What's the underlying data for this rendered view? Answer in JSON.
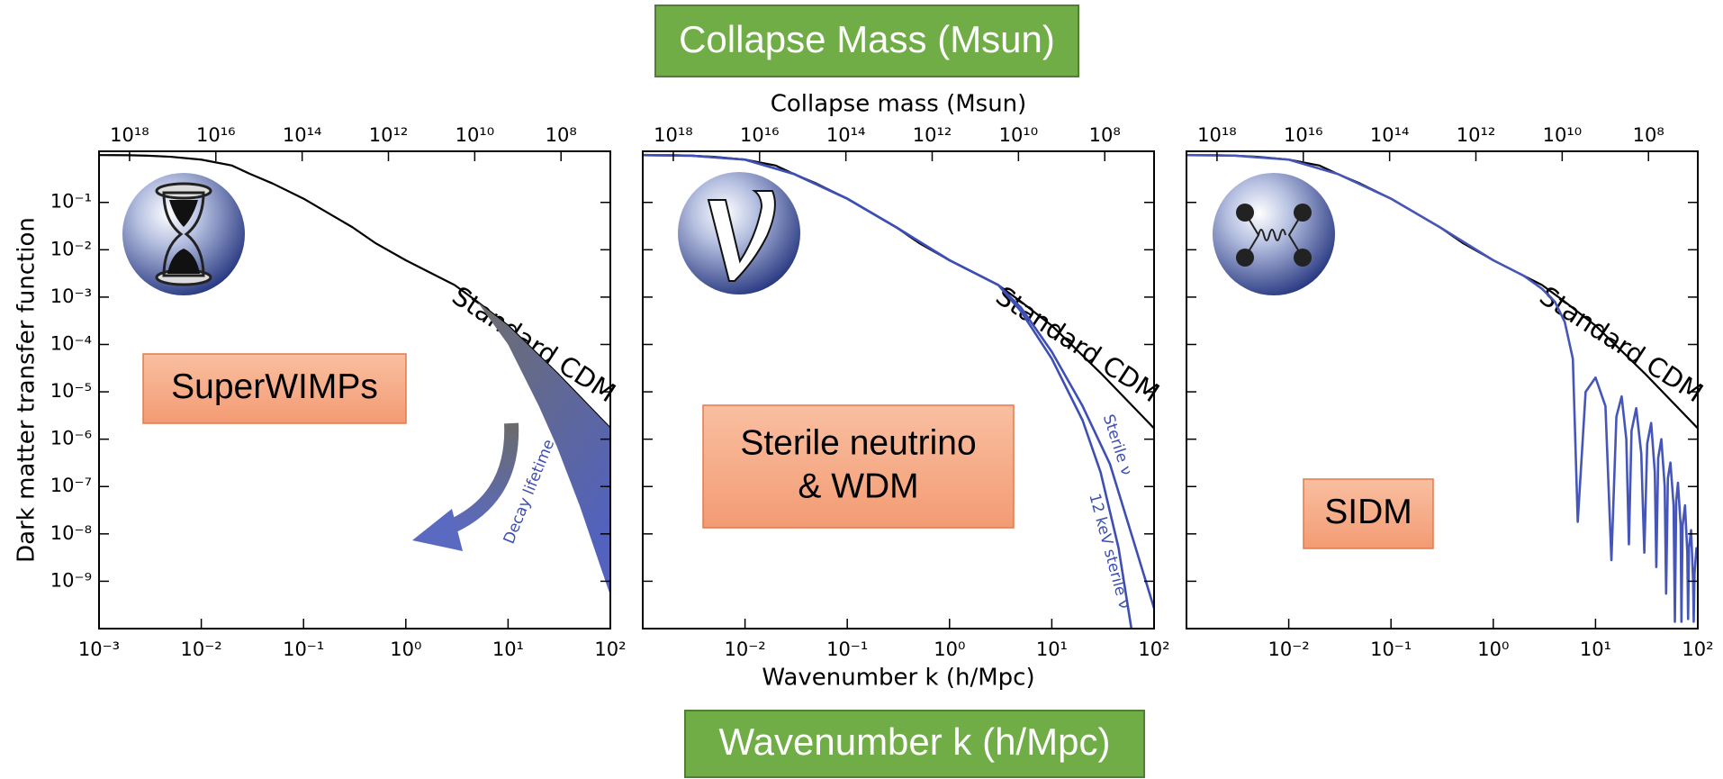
{
  "banners": {
    "top": "Collapse Mass (Msun)",
    "bottom": "Wavenumber k (h/Mpc)"
  },
  "chart_data": [
    {
      "type": "line",
      "log_x": true,
      "log_y": true,
      "ylabel": "Dark matter transfer function",
      "xlim": [
        0.001,
        100
      ],
      "ylim": [
        1e-10,
        1.2
      ],
      "xticks": [
        {
          "value": 0.001,
          "label": "10⁻³"
        },
        {
          "value": 0.01,
          "label": "10⁻²"
        },
        {
          "value": 0.1,
          "label": "10⁻¹"
        },
        {
          "value": 1,
          "label": "10⁰"
        },
        {
          "value": 10,
          "label": "10¹"
        },
        {
          "value": 100,
          "label": "10²"
        }
      ],
      "yticks": [
        {
          "value": 0.1,
          "label": "10⁻¹"
        },
        {
          "value": 0.01,
          "label": "10⁻²"
        },
        {
          "value": 0.001,
          "label": "10⁻³"
        },
        {
          "value": 0.0001,
          "label": "10⁻⁴"
        },
        {
          "value": 1e-05,
          "label": "10⁻⁵"
        },
        {
          "value": 1e-06,
          "label": "10⁻⁶"
        },
        {
          "value": 1e-07,
          "label": "10⁻⁷"
        },
        {
          "value": 1e-08,
          "label": "10⁻⁸"
        },
        {
          "value": 1e-09,
          "label": "10⁻⁹"
        }
      ],
      "show_ytick_labels": true,
      "x2lim": [
        5.1e+18,
        7200000.0
      ],
      "x2ticks": [
        {
          "value": 1e+18,
          "label": "10¹⁸"
        },
        {
          "value": 1e+16,
          "label": "10¹⁶"
        },
        {
          "value": 100000000000000.0,
          "label": "10¹⁴"
        },
        {
          "value": 1000000000000.0,
          "label": "10¹²"
        },
        {
          "value": 10000000000.0,
          "label": "10¹⁰"
        },
        {
          "value": 100000000.0,
          "label": "10⁸"
        }
      ],
      "series": [
        {
          "name": "Standard CDM",
          "color": "#000000",
          "x": [
            0.001,
            0.002,
            0.003,
            0.005,
            0.01,
            0.02,
            0.03,
            0.05,
            0.1,
            0.2,
            0.3,
            0.5,
            1,
            2,
            3,
            5,
            10,
            30,
            100
          ],
          "values": [
            1,
            0.99,
            0.97,
            0.92,
            0.8,
            0.6,
            0.4,
            0.25,
            0.12,
            0.05,
            0.03,
            0.014,
            0.006,
            0.0028,
            0.0018,
            0.0008,
            0.00025,
            2.5e-05,
            1.7e-06
          ]
        },
        {
          "style": "band",
          "color": "#5262bd",
          "x": [
            5,
            10,
            20,
            30,
            50,
            100
          ],
          "values": [
            0.0008,
            0.0001,
            5e-06,
            7e-07,
            4e-08,
            5e-10
          ]
        }
      ],
      "annotations": {
        "box": [
          "SuperWIMPs"
        ],
        "arrow_label": "Decay lifetime"
      }
    },
    {
      "type": "line",
      "log_x": true,
      "log_y": true,
      "xlabel": "Wavenumber k (h/Mpc)",
      "x2label": "Collapse mass (Msun)",
      "xlim": [
        0.001,
        100
      ],
      "ylim": [
        1e-10,
        1.2
      ],
      "xticks": [
        {
          "value": 0.01,
          "label": "10⁻²"
        },
        {
          "value": 0.1,
          "label": "10⁻¹"
        },
        {
          "value": 1,
          "label": "10⁰"
        },
        {
          "value": 10,
          "label": "10¹"
        },
        {
          "value": 100,
          "label": "10²"
        }
      ],
      "yticks": [
        {
          "value": 0.1,
          "label": "10⁻¹"
        },
        {
          "value": 0.01,
          "label": "10⁻²"
        },
        {
          "value": 0.001,
          "label": "10⁻³"
        },
        {
          "value": 0.0001,
          "label": "10⁻⁴"
        },
        {
          "value": 1e-05,
          "label": "10⁻⁵"
        },
        {
          "value": 1e-06,
          "label": "10⁻⁶"
        },
        {
          "value": 1e-07,
          "label": "10⁻⁷"
        },
        {
          "value": 1e-08,
          "label": "10⁻⁸"
        },
        {
          "value": 1e-09,
          "label": "10⁻⁹"
        }
      ],
      "show_ytick_labels": false,
      "x2lim": [
        5.1e+18,
        7200000.0
      ],
      "x2ticks": [
        {
          "value": 1e+18,
          "label": "10¹⁸"
        },
        {
          "value": 1e+16,
          "label": "10¹⁶"
        },
        {
          "value": 100000000000000.0,
          "label": "10¹⁴"
        },
        {
          "value": 1000000000000.0,
          "label": "10¹²"
        },
        {
          "value": 10000000000.0,
          "label": "10¹⁰"
        },
        {
          "value": 100000000.0,
          "label": "10⁸"
        }
      ],
      "series": [
        {
          "name": "Standard CDM",
          "color": "#000000",
          "x": [
            0.001,
            0.002,
            0.003,
            0.005,
            0.01,
            0.02,
            0.03,
            0.05,
            0.1,
            0.2,
            0.3,
            0.5,
            1,
            2,
            3,
            5,
            10,
            30,
            100
          ],
          "values": [
            1,
            0.99,
            0.97,
            0.92,
            0.8,
            0.6,
            0.4,
            0.25,
            0.12,
            0.05,
            0.03,
            0.014,
            0.006,
            0.0028,
            0.0018,
            0.0008,
            0.00025,
            2.5e-05,
            1.7e-06
          ]
        },
        {
          "name": "Sterile ν",
          "color": "#3e4fb3",
          "x": [
            0.001,
            0.003,
            0.01,
            0.03,
            0.1,
            0.3,
            1,
            3,
            5,
            10,
            20,
            37,
            60,
            100
          ],
          "values": [
            1,
            0.97,
            0.8,
            0.4,
            0.12,
            0.03,
            0.006,
            0.0018,
            0.0006,
            7e-05,
            5e-06,
            3e-07,
            1e-08,
            2.7e-10
          ]
        },
        {
          "name": "12 keV sterile ν",
          "color": "#3e4fb3",
          "x": [
            0.001,
            0.003,
            0.01,
            0.03,
            0.1,
            0.3,
            1,
            3,
            5,
            10,
            20,
            30,
            45,
            60
          ],
          "values": [
            1,
            0.97,
            0.8,
            0.4,
            0.12,
            0.03,
            0.006,
            0.0018,
            0.0005,
            5e-05,
            2.5e-06,
            2e-07,
            5e-09,
            1e-10
          ]
        }
      ],
      "annotations": {
        "box": [
          "Sterile neutrino",
          "& WDM"
        ]
      }
    },
    {
      "type": "line",
      "log_x": true,
      "log_y": true,
      "xlim": [
        0.001,
        100
      ],
      "ylim": [
        1e-10,
        1.2
      ],
      "xticks": [
        {
          "value": 0.01,
          "label": "10⁻²"
        },
        {
          "value": 0.1,
          "label": "10⁻¹"
        },
        {
          "value": 1,
          "label": "10⁰"
        },
        {
          "value": 10,
          "label": "10¹"
        },
        {
          "value": 100,
          "label": "10²"
        }
      ],
      "yticks": [
        {
          "value": 0.1,
          "label": "10⁻¹"
        },
        {
          "value": 0.01,
          "label": "10⁻²"
        },
        {
          "value": 0.001,
          "label": "10⁻³"
        },
        {
          "value": 0.0001,
          "label": "10⁻⁴"
        },
        {
          "value": 1e-05,
          "label": "10⁻⁵"
        },
        {
          "value": 1e-06,
          "label": "10⁻⁶"
        },
        {
          "value": 1e-07,
          "label": "10⁻⁷"
        },
        {
          "value": 1e-08,
          "label": "10⁻⁸"
        },
        {
          "value": 1e-09,
          "label": "10⁻⁹"
        }
      ],
      "show_ytick_labels": false,
      "x2lim": [
        5.1e+18,
        7200000.0
      ],
      "x2ticks": [
        {
          "value": 1e+18,
          "label": "10¹⁸"
        },
        {
          "value": 1e+16,
          "label": "10¹⁶"
        },
        {
          "value": 100000000000000.0,
          "label": "10¹⁴"
        },
        {
          "value": 1000000000000.0,
          "label": "10¹²"
        },
        {
          "value": 10000000000.0,
          "label": "10¹⁰"
        },
        {
          "value": 100000000.0,
          "label": "10⁸"
        }
      ],
      "series": [
        {
          "name": "Standard CDM",
          "color": "#000000",
          "x": [
            0.001,
            0.002,
            0.003,
            0.005,
            0.01,
            0.02,
            0.03,
            0.05,
            0.1,
            0.2,
            0.3,
            0.5,
            1,
            2,
            3,
            5,
            10,
            30,
            100
          ],
          "values": [
            1,
            0.99,
            0.97,
            0.92,
            0.8,
            0.6,
            0.4,
            0.25,
            0.12,
            0.05,
            0.03,
            0.014,
            0.006,
            0.0028,
            0.0018,
            0.0008,
            0.00025,
            2.5e-05,
            1.7e-06
          ]
        },
        {
          "color": "#4656b8",
          "x": [
            0.001,
            0.003,
            0.01,
            0.03,
            0.1,
            0.3,
            1,
            2,
            3,
            4,
            5,
            6,
            6.7,
            8,
            10,
            12.5,
            14.3,
            16,
            18,
            20,
            21.2,
            22.5,
            25,
            28,
            30,
            32,
            35,
            38,
            39.3,
            41,
            44,
            47.5,
            49,
            51,
            54,
            58,
            59.7,
            61.5,
            64,
            68,
            69.2,
            71,
            75,
            79,
            80.4,
            82,
            86,
            90,
            91.2,
            93,
            97,
            100
          ],
          "values": [
            1,
            0.97,
            0.8,
            0.4,
            0.12,
            0.03,
            0.006,
            0.0028,
            0.0015,
            0.0008,
            0.0003,
            5e-05,
            1.8e-08,
            1e-05,
            2e-05,
            5e-06,
            2.8e-09,
            3e-06,
            8e-06,
            1e-06,
            6e-09,
            1.5e-06,
            4.5e-06,
            5e-07,
            4e-09,
            8e-07,
            2.2e-06,
            2e-07,
            2e-09,
            4e-07,
            1e-06,
            1e-07,
            5.5e-10,
            1.5e-07,
            3.2e-07,
            4e-08,
            1.4e-10,
            5e-08,
            1.2e-07,
            1.5e-08,
            1.4e-10,
            1.5e-08,
            4e-08,
            4e-09,
            1.6e-10,
            5e-09,
            1.2e-08,
            1e-09,
            1.4e-10,
            1.5e-09,
            5e-09,
            3e-09
          ]
        }
      ],
      "annotations": {
        "box": [
          "SIDM"
        ]
      }
    }
  ]
}
